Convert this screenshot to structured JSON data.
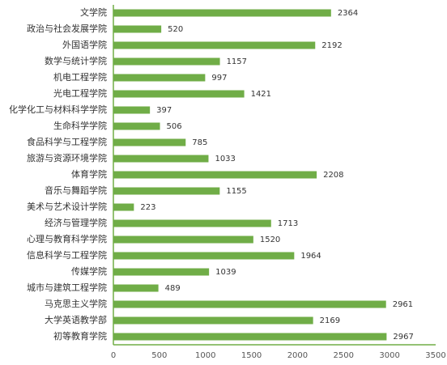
{
  "colors": {
    "bar": "#70AD47",
    "axis": "#70AD47",
    "text": "#333333"
  },
  "chart_data": {
    "type": "bar",
    "orientation": "horizontal",
    "title": "",
    "xlabel": "",
    "ylabel": "",
    "xlim": [
      0,
      3500
    ],
    "ticks": [
      "0",
      "500",
      "1000",
      "1500",
      "2000",
      "2500",
      "3000",
      "3500"
    ],
    "grid": false,
    "legend": "none",
    "categories": [
      "文学院",
      "政治与社会发展学院",
      "外国语学院",
      "数学与统计学院",
      "机电工程学院",
      "光电工程学院",
      "化学化工与材料科学学院",
      "生命科学学院",
      "食品科学与工程学院",
      "旅游与资源环境学院",
      "体育学院",
      "音乐与舞蹈学院",
      "美术与艺术设计学院",
      "经济与管理学院",
      "心理与教育科学学院",
      "信息科学与工程学院",
      "传媒学院",
      "城市与建筑工程学院",
      "马克思主义学院",
      "大学英语教学部",
      "初等教育学院"
    ],
    "values": [
      2364,
      520,
      2192,
      1157,
      997,
      1421,
      397,
      506,
      785,
      1033,
      2208,
      1155,
      223,
      1713,
      1520,
      1964,
      1039,
      489,
      2961,
      2169,
      2967
    ]
  }
}
